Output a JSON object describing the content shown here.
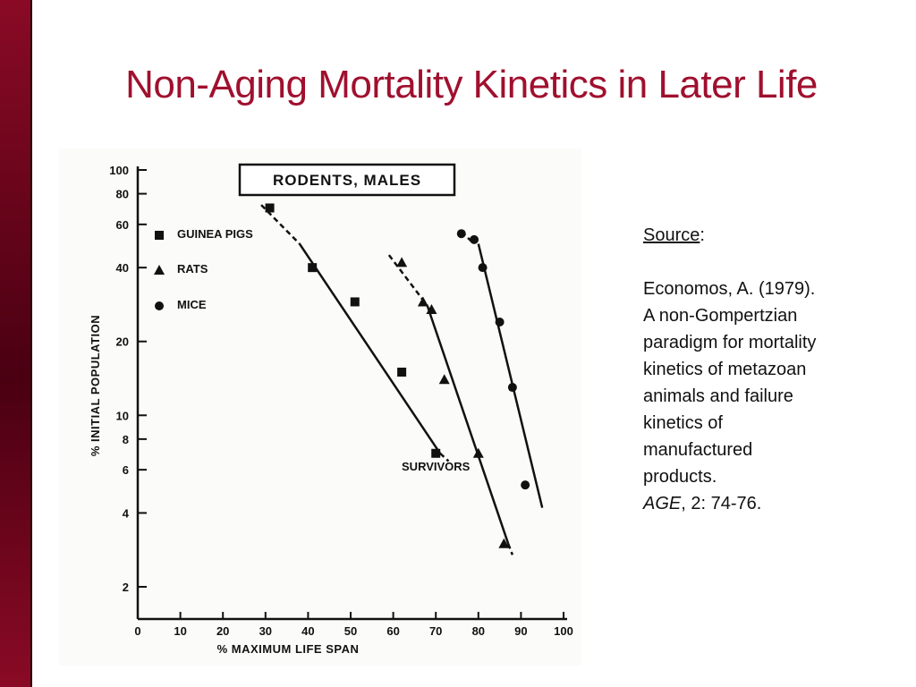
{
  "slide": {
    "title": "Non-Aging Mortality Kinetics in Later Life"
  },
  "source": {
    "label": "Source",
    "colon": ":",
    "lines": [
      "Economos, A. (1979).",
      "A non-Gompertzian",
      "paradigm for mortality",
      "kinetics of metazoan",
      "animals and failure",
      "kinetics of",
      "manufactured",
      "products."
    ],
    "journal": "AGE",
    "volume_pages": ", 2: 74-76."
  },
  "chart_data": {
    "type": "scatter",
    "title": "RODENTS, MALES",
    "annotation": "SURVIVORS",
    "xlabel": "% MAXIMUM LIFE SPAN",
    "ylabel": "% INITIAL POPULATION",
    "xlim": [
      0,
      100
    ],
    "ylim": [
      1.6,
      100
    ],
    "yscale": "log",
    "xticks": [
      0,
      10,
      20,
      30,
      40,
      50,
      60,
      70,
      80,
      90,
      100
    ],
    "yticks": [
      2,
      4,
      6,
      8,
      10,
      20,
      40,
      60,
      80,
      100
    ],
    "legend_position": "top-left",
    "series": [
      {
        "name": "GUINEA PIGS",
        "marker": "square",
        "points": [
          [
            31,
            70
          ],
          [
            41,
            40
          ],
          [
            51,
            29
          ],
          [
            62,
            15
          ],
          [
            70,
            7
          ]
        ],
        "fit": {
          "dashed": [
            [
              29,
              72
            ],
            [
              38,
              50
            ]
          ],
          "solid": [
            [
              38,
              50
            ],
            [
              71,
              7
            ]
          ],
          "dashed_tail": [
            [
              71,
              7
            ],
            [
              73,
              6.5
            ]
          ]
        }
      },
      {
        "name": "RATS",
        "marker": "triangle",
        "points": [
          [
            62,
            42
          ],
          [
            67,
            29
          ],
          [
            69,
            27
          ],
          [
            72,
            14
          ],
          [
            80,
            7
          ],
          [
            86,
            3
          ]
        ],
        "fit": {
          "dashed": [
            [
              59,
              45
            ],
            [
              68,
              28
            ]
          ],
          "solid": [
            [
              68,
              28
            ],
            [
              87,
              3
            ]
          ],
          "dashed_tail": [
            [
              87,
              3
            ],
            [
              88,
              2.7
            ]
          ]
        }
      },
      {
        "name": "MICE",
        "marker": "circle",
        "points": [
          [
            76,
            55
          ],
          [
            79,
            52
          ],
          [
            81,
            40
          ],
          [
            85,
            24
          ],
          [
            88,
            13
          ],
          [
            91,
            5.2
          ]
        ],
        "fit": {
          "dashed": [
            [
              76,
              56
            ],
            [
              79,
              50
            ]
          ],
          "solid": [
            [
              80,
              50
            ],
            [
              95,
              4.2
            ]
          ]
        }
      }
    ]
  }
}
